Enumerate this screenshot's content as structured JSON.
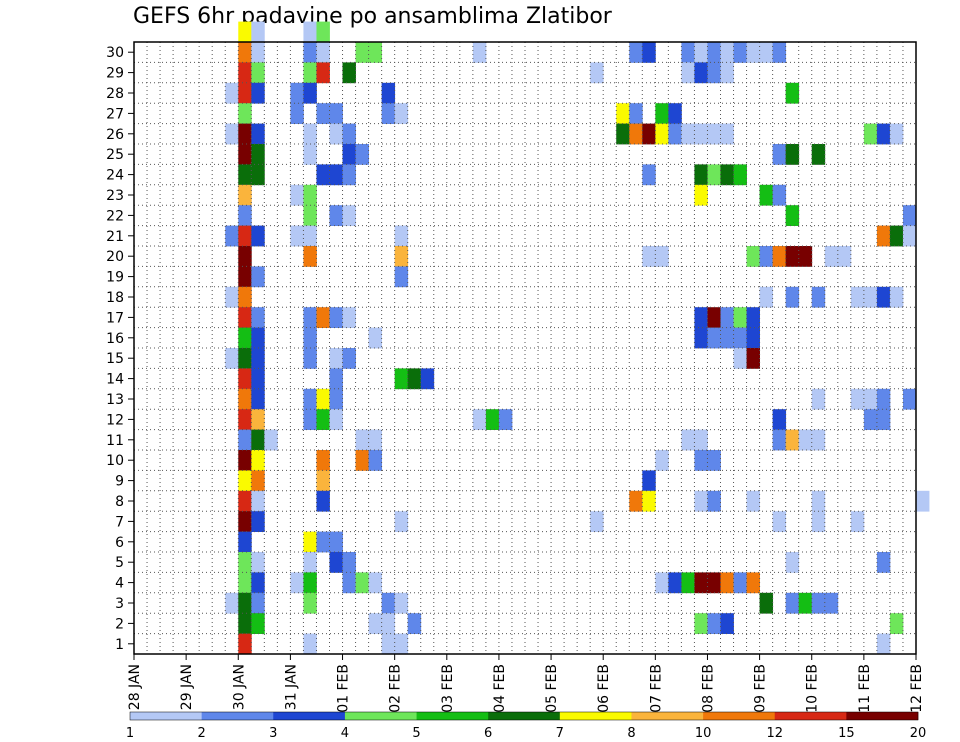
{
  "chart_data": {
    "type": "heatmap",
    "title": "GEFS 6hr padavine po ansamblima Zlatibor",
    "x_labels": [
      "28 JAN",
      "29 JAN",
      "30 JAN",
      "31 JAN",
      "01 FEB",
      "02 FEB",
      "03 FEB",
      "04 FEB",
      "05 FEB",
      "06 FEB",
      "07 FEB",
      "08 FEB",
      "09 FEB",
      "10 FEB",
      "11 FEB",
      "12 FEB"
    ],
    "y_labels": [
      "1",
      "2",
      "3",
      "4",
      "5",
      "6",
      "7",
      "8",
      "9",
      "10",
      "11",
      "12",
      "13",
      "14",
      "15",
      "16",
      "17",
      "18",
      "19",
      "20",
      "21",
      "22",
      "23",
      "24",
      "25",
      "26",
      "27",
      "28",
      "29",
      "30"
    ],
    "x_range": [
      "28 JAN",
      "12 FEB"
    ],
    "time_step_hours": 6,
    "y_range": [
      0,
      30
    ],
    "grid": true,
    "colorbar": {
      "position": "bottom",
      "labels": [
        "1",
        "2",
        "3",
        "4",
        "5",
        "6",
        "7",
        "8",
        "10",
        "12",
        "15",
        "20"
      ],
      "thresholds": [
        1,
        2,
        3,
        4,
        5,
        6,
        7,
        8,
        10,
        12,
        15,
        20
      ],
      "colors": [
        "#b4c8f5",
        "#5f87ea",
        "#1e46d2",
        "#6ee65a",
        "#14be14",
        "#0a6e0a",
        "#fafa00",
        "#fab43c",
        "#f0780a",
        "#d72814",
        "#780000"
      ]
    },
    "cells_note": "member, time slot (6h steps from 28 JAN 00Z), colour class 0-10",
    "cells": [
      [
        30,
        8,
        6
      ],
      [
        30,
        9,
        0
      ],
      [
        30,
        13,
        0
      ],
      [
        30,
        14,
        3
      ],
      [
        29,
        8,
        8
      ],
      [
        29,
        9,
        0
      ],
      [
        29,
        13,
        1
      ],
      [
        29,
        14,
        0
      ],
      [
        29,
        17,
        3
      ],
      [
        29,
        18,
        3
      ],
      [
        29,
        26,
        0
      ],
      [
        29,
        38,
        1
      ],
      [
        29,
        39,
        2
      ],
      [
        29,
        42,
        1
      ],
      [
        29,
        43,
        0
      ],
      [
        29,
        44,
        1
      ],
      [
        29,
        45,
        0
      ],
      [
        29,
        46,
        1
      ],
      [
        29,
        47,
        0
      ],
      [
        29,
        48,
        0
      ],
      [
        29,
        49,
        1
      ],
      [
        28,
        8,
        9
      ],
      [
        28,
        9,
        3
      ],
      [
        28,
        13,
        3
      ],
      [
        28,
        14,
        9
      ],
      [
        28,
        16,
        5
      ],
      [
        28,
        35,
        0
      ],
      [
        28,
        42,
        0
      ],
      [
        28,
        43,
        2
      ],
      [
        28,
        44,
        1
      ],
      [
        28,
        45,
        0
      ],
      [
        27,
        7,
        0
      ],
      [
        27,
        8,
        9
      ],
      [
        27,
        9,
        2
      ],
      [
        27,
        12,
        1
      ],
      [
        27,
        13,
        2
      ],
      [
        27,
        19,
        2
      ],
      [
        27,
        50,
        4
      ],
      [
        26,
        8,
        3
      ],
      [
        26,
        12,
        1
      ],
      [
        26,
        14,
        1
      ],
      [
        26,
        15,
        1
      ],
      [
        26,
        19,
        1
      ],
      [
        26,
        20,
        0
      ],
      [
        26,
        37,
        6
      ],
      [
        26,
        38,
        1
      ],
      [
        26,
        40,
        4
      ],
      [
        26,
        41,
        2
      ],
      [
        25,
        7,
        0
      ],
      [
        25,
        8,
        10
      ],
      [
        25,
        9,
        2
      ],
      [
        25,
        13,
        0
      ],
      [
        25,
        15,
        0
      ],
      [
        25,
        16,
        1
      ],
      [
        25,
        37,
        5
      ],
      [
        25,
        38,
        8
      ],
      [
        25,
        39,
        10
      ],
      [
        25,
        40,
        6
      ],
      [
        25,
        41,
        1
      ],
      [
        25,
        42,
        0
      ],
      [
        25,
        43,
        0
      ],
      [
        25,
        44,
        0
      ],
      [
        25,
        45,
        0
      ],
      [
        25,
        56,
        3
      ],
      [
        25,
        57,
        2
      ],
      [
        25,
        58,
        0
      ],
      [
        24,
        8,
        10
      ],
      [
        24,
        9,
        5
      ],
      [
        24,
        13,
        0
      ],
      [
        24,
        16,
        2
      ],
      [
        24,
        17,
        1
      ],
      [
        24,
        49,
        1
      ],
      [
        24,
        50,
        5
      ],
      [
        24,
        52,
        5
      ],
      [
        23,
        8,
        5
      ],
      [
        23,
        9,
        5
      ],
      [
        23,
        14,
        2
      ],
      [
        23,
        15,
        2
      ],
      [
        23,
        16,
        1
      ],
      [
        23,
        39,
        1
      ],
      [
        23,
        43,
        5
      ],
      [
        23,
        44,
        3
      ],
      [
        23,
        45,
        5
      ],
      [
        23,
        46,
        4
      ],
      [
        22,
        8,
        7
      ],
      [
        22,
        12,
        0
      ],
      [
        22,
        13,
        3
      ],
      [
        22,
        43,
        6
      ],
      [
        22,
        48,
        4
      ],
      [
        22,
        49,
        1
      ],
      [
        21,
        8,
        1
      ],
      [
        21,
        13,
        3
      ],
      [
        21,
        15,
        1
      ],
      [
        21,
        16,
        0
      ],
      [
        21,
        50,
        4
      ],
      [
        21,
        59,
        1
      ],
      [
        20,
        7,
        1
      ],
      [
        20,
        8,
        9
      ],
      [
        20,
        9,
        2
      ],
      [
        20,
        12,
        0
      ],
      [
        20,
        13,
        0
      ],
      [
        20,
        20,
        0
      ],
      [
        20,
        57,
        8
      ],
      [
        20,
        58,
        5
      ],
      [
        20,
        59,
        0
      ],
      [
        19,
        8,
        10
      ],
      [
        19,
        13,
        8
      ],
      [
        19,
        20,
        7
      ],
      [
        19,
        39,
        0
      ],
      [
        19,
        40,
        0
      ],
      [
        19,
        47,
        3
      ],
      [
        19,
        48,
        1
      ],
      [
        19,
        49,
        8
      ],
      [
        19,
        50,
        10
      ],
      [
        19,
        51,
        10
      ],
      [
        19,
        53,
        0
      ],
      [
        19,
        54,
        0
      ],
      [
        18,
        8,
        10
      ],
      [
        18,
        9,
        1
      ],
      [
        18,
        20,
        1
      ],
      [
        17,
        7,
        0
      ],
      [
        17,
        8,
        8
      ],
      [
        17,
        48,
        0
      ],
      [
        17,
        50,
        1
      ],
      [
        17,
        52,
        1
      ],
      [
        17,
        55,
        0
      ],
      [
        17,
        56,
        0
      ],
      [
        17,
        57,
        2
      ],
      [
        17,
        58,
        0
      ],
      [
        16,
        8,
        9
      ],
      [
        16,
        9,
        1
      ],
      [
        16,
        13,
        1
      ],
      [
        16,
        14,
        8
      ],
      [
        16,
        15,
        1
      ],
      [
        16,
        16,
        0
      ],
      [
        16,
        43,
        2
      ],
      [
        16,
        44,
        10
      ],
      [
        16,
        45,
        1
      ],
      [
        16,
        46,
        3
      ],
      [
        16,
        47,
        2
      ],
      [
        15,
        8,
        4
      ],
      [
        15,
        9,
        2
      ],
      [
        15,
        13,
        1
      ],
      [
        15,
        18,
        0
      ],
      [
        15,
        43,
        2
      ],
      [
        15,
        44,
        1
      ],
      [
        15,
        45,
        1
      ],
      [
        15,
        46,
        1
      ],
      [
        15,
        47,
        2
      ],
      [
        14,
        7,
        0
      ],
      [
        14,
        8,
        5
      ],
      [
        14,
        9,
        2
      ],
      [
        14,
        13,
        1
      ],
      [
        14,
        15,
        0
      ],
      [
        14,
        16,
        1
      ],
      [
        14,
        46,
        0
      ],
      [
        14,
        47,
        10
      ],
      [
        13,
        8,
        9
      ],
      [
        13,
        9,
        2
      ],
      [
        13,
        15,
        1
      ],
      [
        13,
        20,
        4
      ],
      [
        13,
        21,
        5
      ],
      [
        13,
        22,
        2
      ],
      [
        12,
        8,
        8
      ],
      [
        12,
        9,
        2
      ],
      [
        12,
        13,
        1
      ],
      [
        12,
        14,
        6
      ],
      [
        12,
        15,
        1
      ],
      [
        12,
        52,
        0
      ],
      [
        12,
        55,
        0
      ],
      [
        12,
        56,
        0
      ],
      [
        12,
        57,
        1
      ],
      [
        12,
        59,
        1
      ],
      [
        11,
        8,
        9
      ],
      [
        11,
        9,
        7
      ],
      [
        11,
        13,
        1
      ],
      [
        11,
        14,
        4
      ],
      [
        11,
        15,
        0
      ],
      [
        11,
        26,
        0
      ],
      [
        11,
        27,
        4
      ],
      [
        11,
        28,
        1
      ],
      [
        11,
        49,
        2
      ],
      [
        11,
        56,
        1
      ],
      [
        11,
        57,
        1
      ],
      [
        10,
        8,
        1
      ],
      [
        10,
        9,
        5
      ],
      [
        10,
        10,
        0
      ],
      [
        10,
        17,
        0
      ],
      [
        10,
        18,
        0
      ],
      [
        10,
        42,
        0
      ],
      [
        10,
        43,
        0
      ],
      [
        10,
        49,
        1
      ],
      [
        10,
        50,
        7
      ],
      [
        10,
        51,
        0
      ],
      [
        10,
        52,
        0
      ],
      [
        9,
        8,
        10
      ],
      [
        9,
        9,
        6
      ],
      [
        9,
        14,
        8
      ],
      [
        9,
        17,
        8
      ],
      [
        9,
        18,
        1
      ],
      [
        9,
        40,
        0
      ],
      [
        9,
        43,
        1
      ],
      [
        9,
        44,
        1
      ],
      [
        8,
        8,
        6
      ],
      [
        8,
        9,
        8
      ],
      [
        8,
        14,
        7
      ],
      [
        8,
        39,
        2
      ],
      [
        7,
        8,
        9
      ],
      [
        7,
        9,
        0
      ],
      [
        7,
        14,
        2
      ],
      [
        7,
        38,
        8
      ],
      [
        7,
        39,
        6
      ],
      [
        7,
        43,
        0
      ],
      [
        7,
        44,
        1
      ],
      [
        7,
        47,
        0
      ],
      [
        7,
        52,
        0
      ],
      [
        7,
        60,
        0
      ],
      [
        6,
        8,
        10
      ],
      [
        6,
        9,
        2
      ],
      [
        6,
        20,
        0
      ],
      [
        6,
        35,
        0
      ],
      [
        6,
        49,
        0
      ],
      [
        6,
        52,
        0
      ],
      [
        6,
        55,
        0
      ],
      [
        5,
        8,
        2
      ],
      [
        5,
        13,
        6
      ],
      [
        5,
        14,
        1
      ],
      [
        5,
        15,
        1
      ],
      [
        4,
        8,
        3
      ],
      [
        4,
        9,
        0
      ],
      [
        4,
        13,
        0
      ],
      [
        4,
        15,
        2
      ],
      [
        4,
        16,
        1
      ],
      [
        4,
        50,
        0
      ],
      [
        4,
        57,
        1
      ],
      [
        3,
        8,
        3
      ],
      [
        3,
        9,
        2
      ],
      [
        3,
        12,
        0
      ],
      [
        3,
        13,
        4
      ],
      [
        3,
        16,
        1
      ],
      [
        3,
        17,
        3
      ],
      [
        3,
        18,
        0
      ],
      [
        3,
        40,
        0
      ],
      [
        3,
        41,
        2
      ],
      [
        3,
        42,
        4
      ],
      [
        3,
        43,
        10
      ],
      [
        3,
        44,
        10
      ],
      [
        3,
        45,
        8
      ],
      [
        3,
        46,
        1
      ],
      [
        3,
        47,
        8
      ],
      [
        2,
        7,
        0
      ],
      [
        2,
        8,
        5
      ],
      [
        2,
        9,
        1
      ],
      [
        2,
        13,
        3
      ],
      [
        2,
        19,
        1
      ],
      [
        2,
        20,
        0
      ],
      [
        2,
        48,
        5
      ],
      [
        2,
        50,
        1
      ],
      [
        2,
        51,
        4
      ],
      [
        2,
        52,
        1
      ],
      [
        2,
        53,
        1
      ],
      [
        1,
        8,
        5
      ],
      [
        1,
        9,
        4
      ],
      [
        1,
        18,
        0
      ],
      [
        1,
        19,
        0
      ],
      [
        1,
        21,
        1
      ],
      [
        1,
        43,
        3
      ],
      [
        1,
        44,
        1
      ],
      [
        1,
        45,
        2
      ],
      [
        1,
        58,
        3
      ],
      [
        0,
        8,
        9
      ],
      [
        0,
        13,
        0
      ],
      [
        0,
        19,
        0
      ],
      [
        0,
        20,
        0
      ],
      [
        0,
        57,
        0
      ]
    ]
  }
}
